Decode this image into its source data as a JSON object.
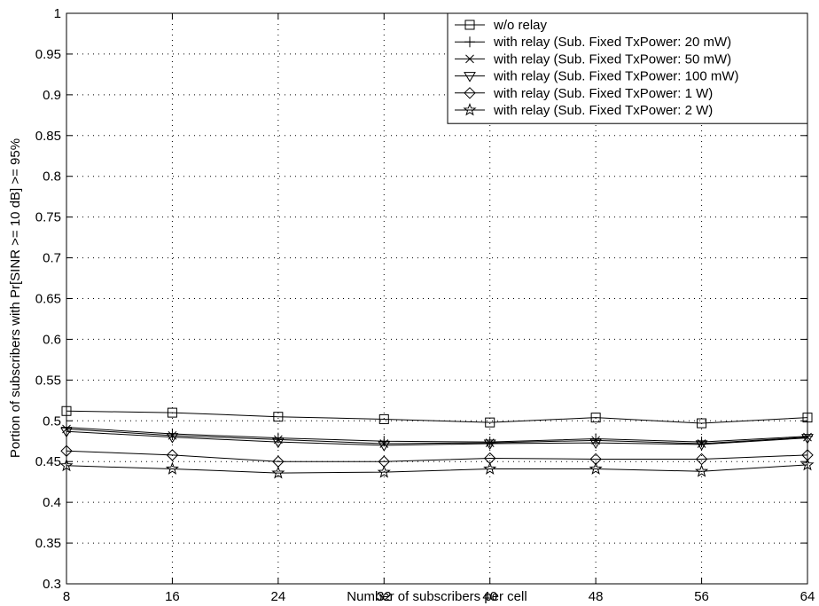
{
  "chart_data": {
    "type": "line",
    "xlabel": "Number of subscribers per cell",
    "ylabel": "Portion of subscribers with Pr[SINR >= 10 dB] >= 95%",
    "x": [
      8,
      16,
      24,
      32,
      40,
      48,
      56,
      64
    ],
    "xlim": [
      8,
      64
    ],
    "ylim": [
      0.3,
      1
    ],
    "xticks": [
      "8",
      "16",
      "24",
      "32",
      "40",
      "48",
      "56",
      "64"
    ],
    "yticks": [
      "0.3",
      "0.35",
      "0.4",
      "0.45",
      "0.5",
      "0.55",
      "0.6",
      "0.65",
      "0.7",
      "0.75",
      "0.8",
      "0.85",
      "0.9",
      "0.95",
      "1"
    ],
    "grid": true,
    "legend_position": "top-right",
    "series": [
      {
        "name": "w/o relay",
        "marker": "square",
        "values": [
          0.512,
          0.51,
          0.505,
          0.502,
          0.498,
          0.504,
          0.497,
          0.504
        ]
      },
      {
        "name": "with relay (Sub. Fixed TxPower: 20 mW)",
        "marker": "plus",
        "values": [
          0.492,
          0.484,
          0.479,
          0.475,
          0.474,
          0.478,
          0.474,
          0.481
        ]
      },
      {
        "name": "with relay (Sub. Fixed TxPower: 50 mW)",
        "marker": "x",
        "values": [
          0.49,
          0.482,
          0.477,
          0.472,
          0.473,
          0.476,
          0.472,
          0.48
        ]
      },
      {
        "name": "with relay (Sub. Fixed TxPower: 100 mW)",
        "marker": "triangle-down",
        "values": [
          0.487,
          0.48,
          0.474,
          0.47,
          0.472,
          0.473,
          0.471,
          0.479
        ]
      },
      {
        "name": "with relay (Sub. Fixed TxPower: 1 W)",
        "marker": "diamond",
        "values": [
          0.463,
          0.458,
          0.45,
          0.45,
          0.454,
          0.453,
          0.453,
          0.458
        ]
      },
      {
        "name": "with relay (Sub. Fixed TxPower: 2 W)",
        "marker": "star",
        "values": [
          0.445,
          0.441,
          0.436,
          0.437,
          0.441,
          0.441,
          0.438,
          0.446
        ]
      }
    ]
  }
}
